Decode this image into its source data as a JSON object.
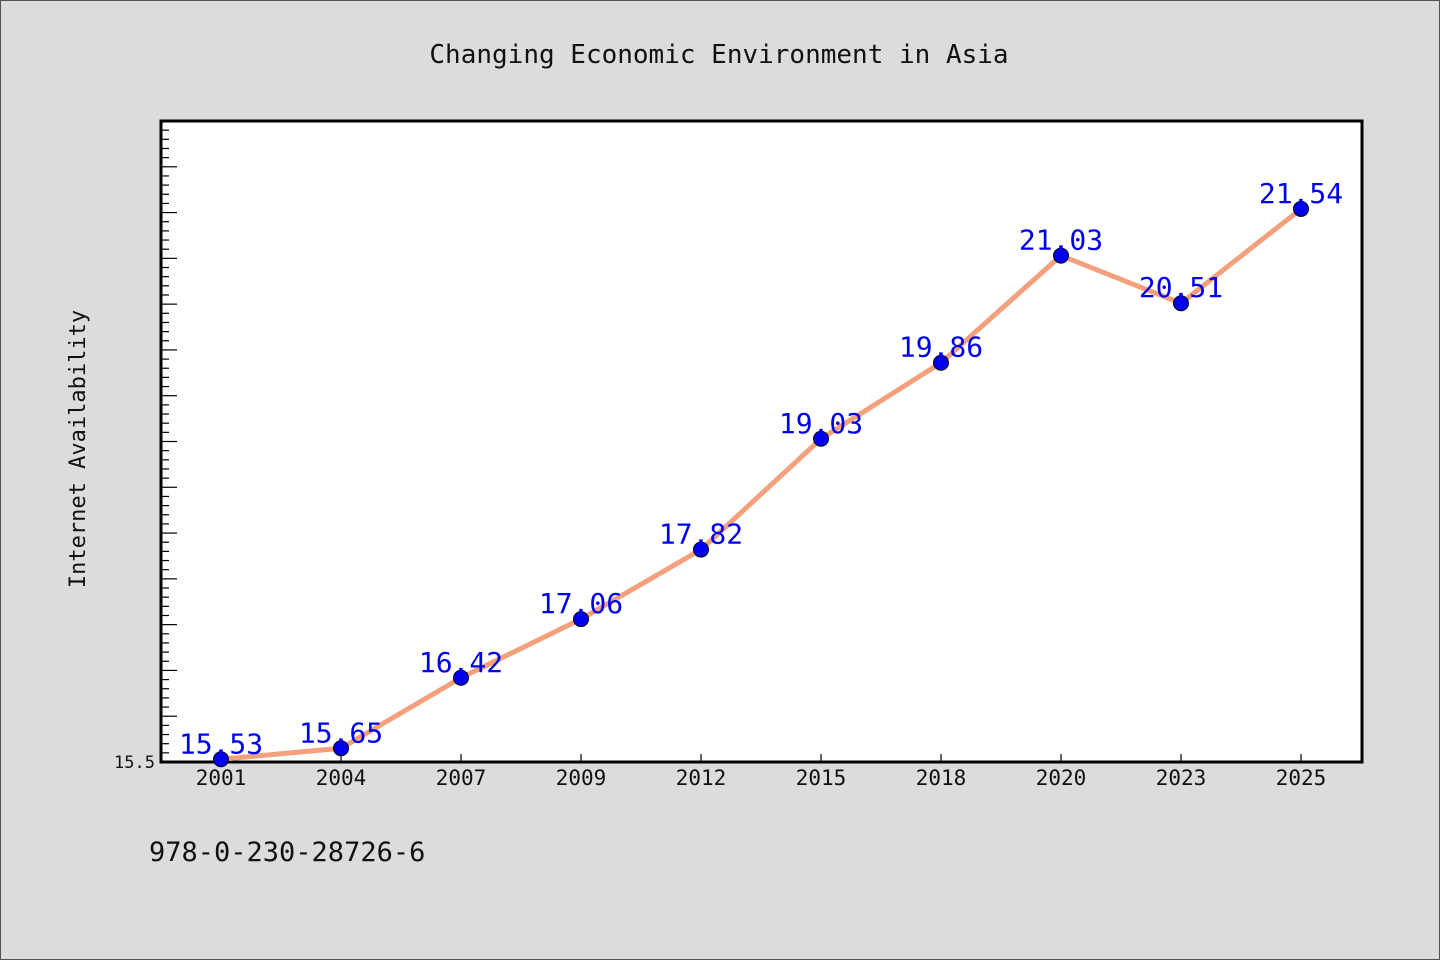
{
  "chart_data": {
    "type": "line",
    "title": "Changing Economic Environment in Asia",
    "xlabel": "",
    "ylabel": "Internet Availability",
    "categories": [
      "2001",
      "2004",
      "2007",
      "2009",
      "2012",
      "2015",
      "2018",
      "2020",
      "2023",
      "2025"
    ],
    "values": [
      15.53,
      15.65,
      16.42,
      17.06,
      17.82,
      19.03,
      19.86,
      21.03,
      20.51,
      21.54
    ],
    "data_labels": [
      "15.53",
      "15.65",
      "16.42",
      "17.06",
      "17.82",
      "19.03",
      "19.86",
      "21.03",
      "20.51",
      "21.54"
    ],
    "ylim": [
      15.5,
      22.5
    ],
    "y_tick_labels": [
      "15.5"
    ],
    "grid": false,
    "legend": "none",
    "colors": {
      "line": "#f4a07c",
      "marker": "#0000ee",
      "label": "#0000ee",
      "background": "#dcdcdc",
      "plot_background": "#ffffff"
    }
  },
  "footnote": "978-0-230-28726-6"
}
